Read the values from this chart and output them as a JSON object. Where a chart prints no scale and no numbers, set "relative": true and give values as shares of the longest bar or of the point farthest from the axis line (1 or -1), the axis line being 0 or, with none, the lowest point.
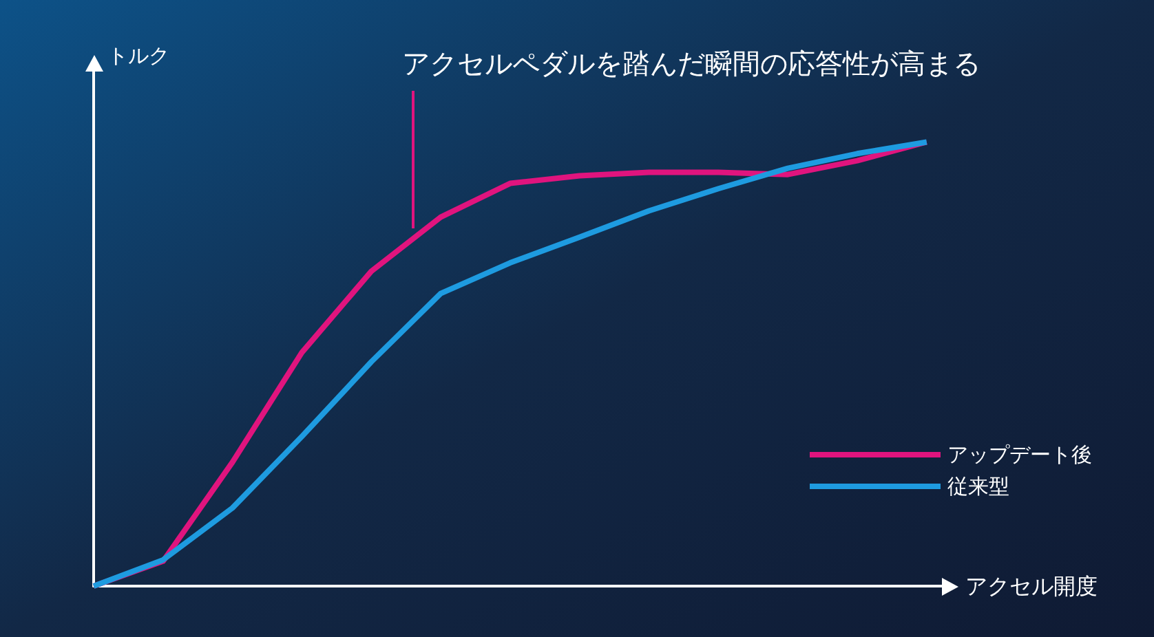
{
  "chart_data": {
    "type": "line",
    "relative": true,
    "xlabel": "アクセル開度",
    "ylabel": "トルク",
    "annotations": [
      "アクセルペダルを踏んだ瞬間の応答性が高まる"
    ],
    "legend": "bottom right",
    "marker": "none",
    "categories": [
      null,
      null,
      null,
      null,
      null,
      null,
      null,
      null,
      null,
      null,
      null,
      null,
      null
    ],
    "series": [
      {
        "name": "アップデート後",
        "color": "#e0147e",
        "values": [
          0,
          0.056,
          0.279,
          0.526,
          0.709,
          0.831,
          0.907,
          0.924,
          0.932,
          0.932,
          0.927,
          0.958,
          1
        ]
      },
      {
        "name": "従来型",
        "color": "#1e9be0",
        "values": [
          0,
          0.059,
          0.176,
          0.337,
          0.505,
          0.659,
          0.728,
          0.786,
          0.845,
          0.895,
          0.941,
          0.974,
          1
        ]
      }
    ]
  }
}
